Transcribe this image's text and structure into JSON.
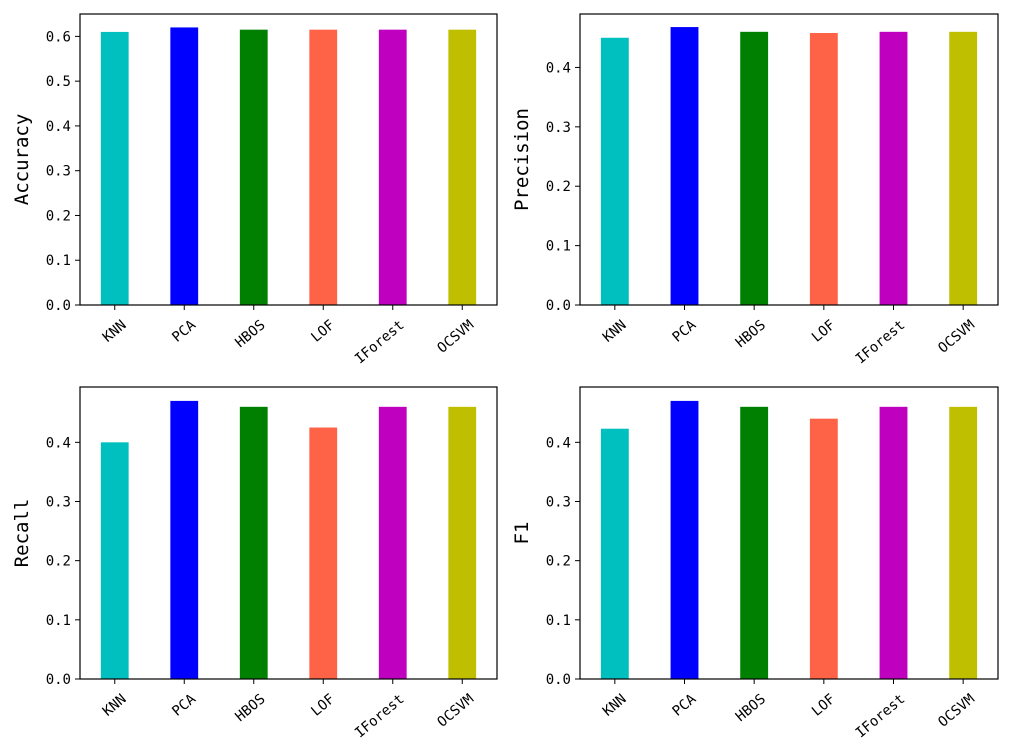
{
  "chart_data": [
    {
      "type": "bar",
      "ylabel": "Accuracy",
      "categories": [
        "KNN",
        "PCA",
        "HBOS",
        "LOF",
        "IForest",
        "OCSVM"
      ],
      "values": [
        0.61,
        0.62,
        0.615,
        0.615,
        0.615,
        0.615
      ],
      "colors": [
        "#00bfbf",
        "#0000ff",
        "#008000",
        "#ff6347",
        "#bf00bf",
        "#bfbf00"
      ],
      "ylim": [
        0,
        0.65
      ],
      "yticks": [
        "0.0",
        "0.1",
        "0.2",
        "0.3",
        "0.4",
        "0.5",
        "0.6"
      ]
    },
    {
      "type": "bar",
      "ylabel": "Precision",
      "categories": [
        "KNN",
        "PCA",
        "HBOS",
        "LOF",
        "IForest",
        "OCSVM"
      ],
      "values": [
        0.45,
        0.468,
        0.46,
        0.458,
        0.46,
        0.46
      ],
      "colors": [
        "#00bfbf",
        "#0000ff",
        "#008000",
        "#ff6347",
        "#bf00bf",
        "#bfbf00"
      ],
      "ylim": [
        0,
        0.49
      ],
      "yticks": [
        "0.0",
        "0.1",
        "0.2",
        "0.3",
        "0.4"
      ]
    },
    {
      "type": "bar",
      "ylabel": "Recall",
      "categories": [
        "KNN",
        "PCA",
        "HBOS",
        "LOF",
        "IForest",
        "OCSVM"
      ],
      "values": [
        0.4,
        0.47,
        0.46,
        0.425,
        0.46,
        0.46
      ],
      "colors": [
        "#00bfbf",
        "#0000ff",
        "#008000",
        "#ff6347",
        "#bf00bf",
        "#bfbf00"
      ],
      "ylim": [
        0,
        0.4935
      ],
      "yticks": [
        "0.0",
        "0.1",
        "0.2",
        "0.3",
        "0.4"
      ]
    },
    {
      "type": "bar",
      "ylabel": "F1",
      "categories": [
        "KNN",
        "PCA",
        "HBOS",
        "LOF",
        "IForest",
        "OCSVM"
      ],
      "values": [
        0.423,
        0.47,
        0.46,
        0.44,
        0.46,
        0.46
      ],
      "colors": [
        "#00bfbf",
        "#0000ff",
        "#008000",
        "#ff6347",
        "#bf00bf",
        "#bfbf00"
      ],
      "ylim": [
        0,
        0.4935
      ],
      "yticks": [
        "0.0",
        "0.1",
        "0.2",
        "0.3",
        "0.4"
      ]
    }
  ]
}
